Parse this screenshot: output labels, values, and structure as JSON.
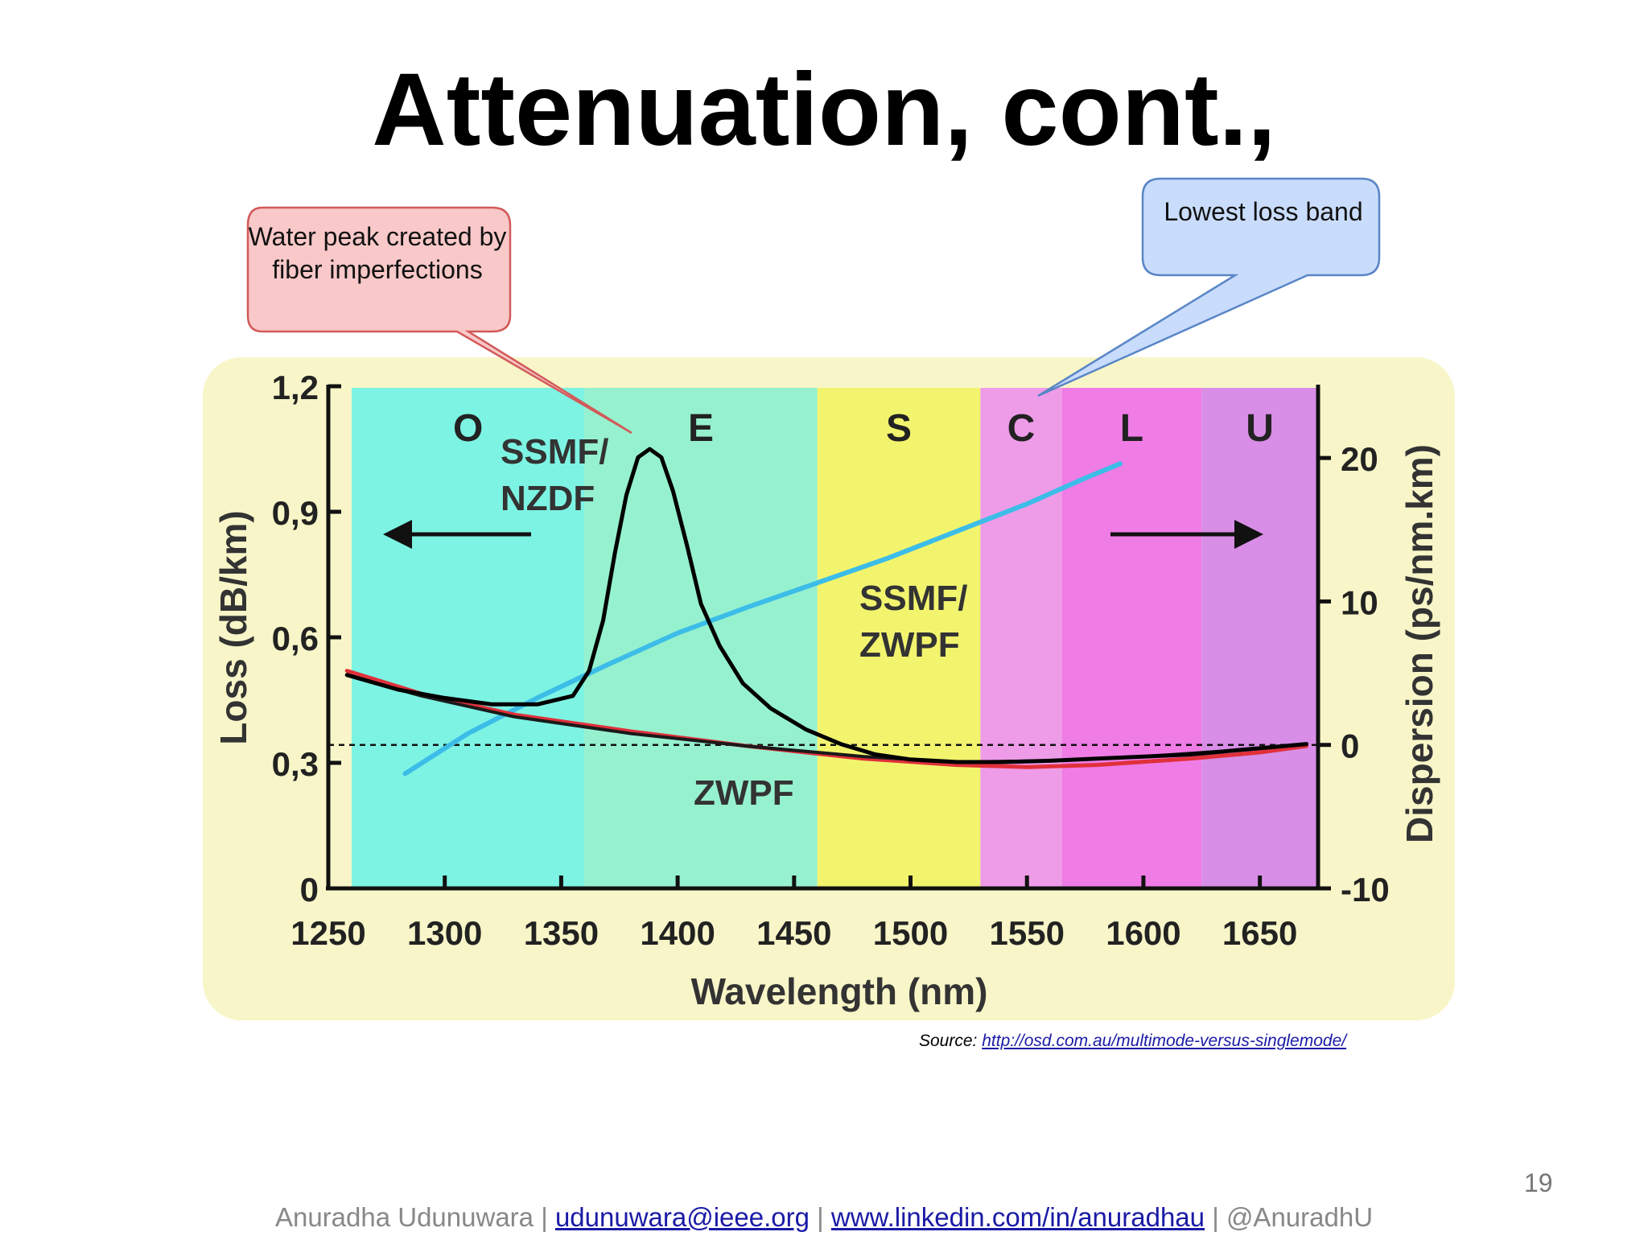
{
  "slide": {
    "title": "Attenuation, cont.,",
    "page_number": "19",
    "source_label": "Source:",
    "source_url": "http://osd.com.au/multimode-versus-singlemode/",
    "footer": {
      "author": "Anuradha Udunuwara",
      "email": "udunuwara@ieee.org",
      "linkedin": "www.linkedin.com/in/anuradhau",
      "handle": "@AnuradhU",
      "separator": "|"
    },
    "callouts": {
      "water_peak": "Water peak created by fiber imperfections",
      "lowest_loss": "Lowest loss band"
    }
  },
  "colors": {
    "panel_bg": "#f8f6c8",
    "band_O": "#7df3e3",
    "band_E": "#96f1cf",
    "band_S": "#f2f46e",
    "band_C": "#ee9ce8",
    "band_L": "#f07ce6",
    "band_U": "#d88ee6",
    "ssmf_nzdf": "#000000",
    "ssmf_zwpf": "#1a1a1a",
    "zwpf": "#e0303a",
    "dispersion": "#3cbde8",
    "callout_red": "#f9c8c8",
    "callout_blue": "#c9dcfc"
  },
  "chart_data": {
    "type": "line",
    "xlabel": "Wavelength (nm)",
    "ylabel": "Loss (dB/km)",
    "y2label": "Dispersion (ps/nm.km)",
    "xlim": [
      1250,
      1675
    ],
    "ylim": [
      0,
      1.2
    ],
    "y2lim": [
      -10,
      25
    ],
    "x_ticks": [
      "1250",
      "1300",
      "1350",
      "1400",
      "1450",
      "1500",
      "1550",
      "1600",
      "1650"
    ],
    "y_ticks": [
      "0",
      "0,3",
      "0,6",
      "0,9",
      "1,2"
    ],
    "y2_ticks": [
      "-10",
      "0",
      "10",
      "20"
    ],
    "bands": [
      {
        "name": "O",
        "start": 1260,
        "end": 1360,
        "color_key": "band_O"
      },
      {
        "name": "E",
        "start": 1360,
        "end": 1460,
        "color_key": "band_E"
      },
      {
        "name": "S",
        "start": 1460,
        "end": 1530,
        "color_key": "band_S"
      },
      {
        "name": "C",
        "start": 1530,
        "end": 1565,
        "color_key": "band_C"
      },
      {
        "name": "L",
        "start": 1565,
        "end": 1625,
        "color_key": "band_L"
      },
      {
        "name": "U",
        "start": 1625,
        "end": 1675,
        "color_key": "band_U"
      }
    ],
    "reference_line": {
      "axis": "y2",
      "value": 0
    },
    "series": [
      {
        "name": "SSMF/NZDF",
        "axis": "y",
        "color_key": "ssmf_nzdf",
        "points": [
          [
            1258,
            0.51
          ],
          [
            1280,
            0.475
          ],
          [
            1300,
            0.455
          ],
          [
            1320,
            0.44
          ],
          [
            1340,
            0.44
          ],
          [
            1355,
            0.46
          ],
          [
            1362,
            0.52
          ],
          [
            1368,
            0.64
          ],
          [
            1373,
            0.8
          ],
          [
            1378,
            0.94
          ],
          [
            1383,
            1.03
          ],
          [
            1388,
            1.05
          ],
          [
            1393,
            1.03
          ],
          [
            1398,
            0.95
          ],
          [
            1404,
            0.82
          ],
          [
            1410,
            0.68
          ],
          [
            1418,
            0.58
          ],
          [
            1428,
            0.49
          ],
          [
            1440,
            0.43
          ],
          [
            1455,
            0.38
          ],
          [
            1470,
            0.345
          ],
          [
            1485,
            0.32
          ],
          [
            1500,
            0.308
          ],
          [
            1520,
            0.302
          ],
          [
            1540,
            0.302
          ],
          [
            1560,
            0.305
          ],
          [
            1580,
            0.31
          ],
          [
            1600,
            0.315
          ],
          [
            1620,
            0.32
          ],
          [
            1640,
            0.33
          ],
          [
            1660,
            0.34
          ],
          [
            1670,
            0.345
          ]
        ]
      },
      {
        "name": "SSMF/ZWPF",
        "axis": "y",
        "color_key": "ssmf_zwpf",
        "points": [
          [
            1258,
            0.51
          ],
          [
            1290,
            0.46
          ],
          [
            1330,
            0.41
          ],
          [
            1380,
            0.37
          ],
          [
            1430,
            0.34
          ],
          [
            1480,
            0.315
          ],
          [
            1520,
            0.302
          ],
          [
            1560,
            0.305
          ],
          [
            1600,
            0.315
          ],
          [
            1640,
            0.33
          ],
          [
            1670,
            0.345
          ]
        ]
      },
      {
        "name": "ZWPF",
        "axis": "y",
        "color_key": "zwpf",
        "points": [
          [
            1258,
            0.52
          ],
          [
            1290,
            0.465
          ],
          [
            1330,
            0.415
          ],
          [
            1380,
            0.375
          ],
          [
            1430,
            0.34
          ],
          [
            1480,
            0.31
          ],
          [
            1520,
            0.295
          ],
          [
            1550,
            0.29
          ],
          [
            1580,
            0.295
          ],
          [
            1620,
            0.31
          ],
          [
            1650,
            0.325
          ],
          [
            1670,
            0.34
          ]
        ]
      },
      {
        "name": "",
        "axis": "y2",
        "color_key": "dispersion",
        "points": [
          [
            1283,
            -2.0
          ],
          [
            1310,
            0.8
          ],
          [
            1340,
            3.3
          ],
          [
            1370,
            5.6
          ],
          [
            1400,
            7.8
          ],
          [
            1430,
            9.6
          ],
          [
            1460,
            11.3
          ],
          [
            1490,
            13.0
          ],
          [
            1520,
            14.9
          ],
          [
            1550,
            16.8
          ],
          [
            1575,
            18.6
          ],
          [
            1590,
            19.6
          ]
        ]
      }
    ],
    "annotations": {
      "ssmf_nzdf": "SSMF/\nNZDF",
      "ssmf_zwpf": "SSMF/\nZWPF",
      "zwpf": "ZWPF"
    }
  }
}
